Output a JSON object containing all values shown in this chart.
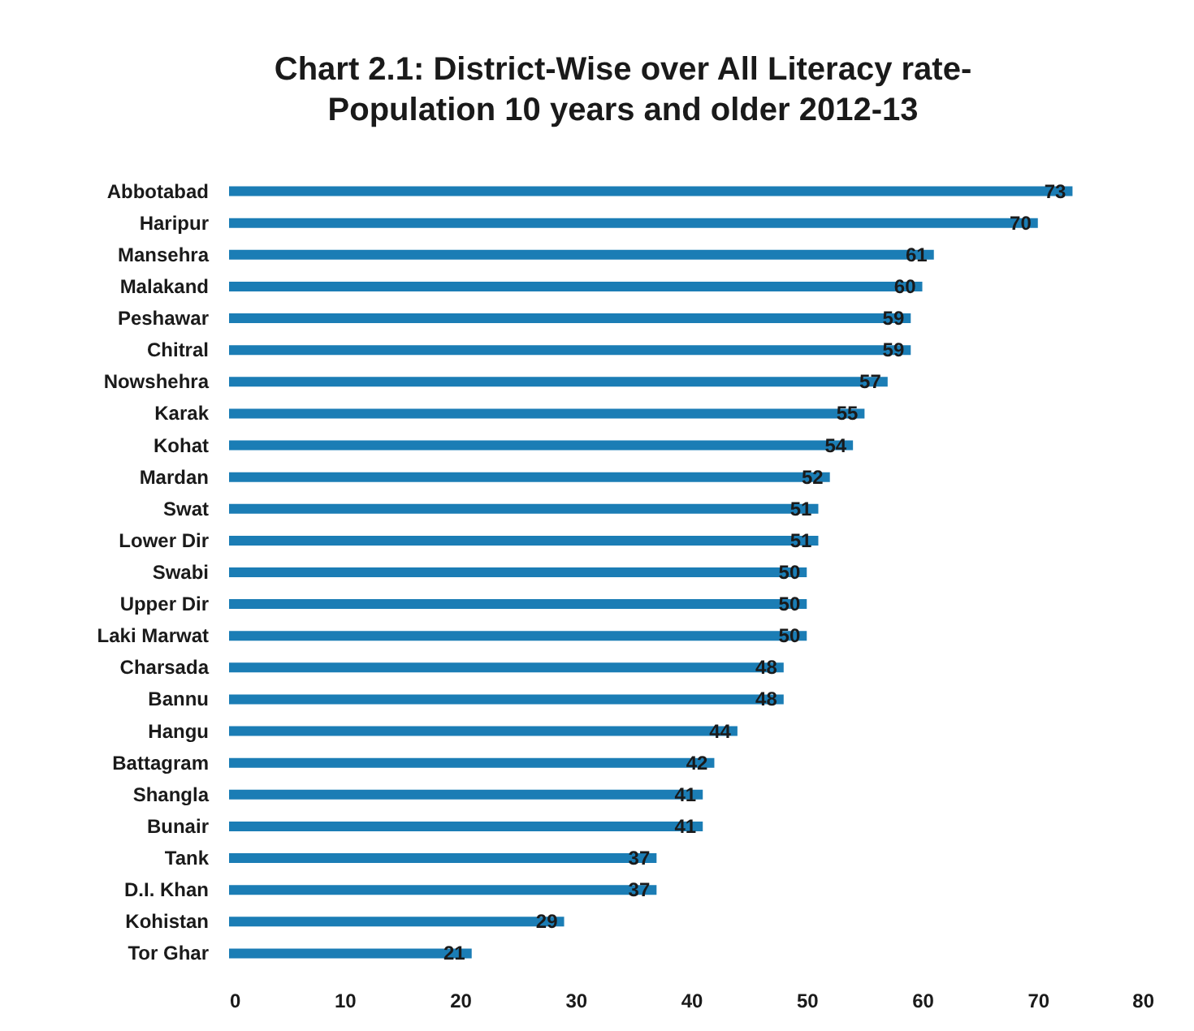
{
  "chart_data": {
    "type": "bar",
    "orientation": "horizontal",
    "title": "Chart 2.1: District-Wise over All Literacy rate-\nPopulation 10 years and older 2012-13",
    "categories": [
      "Abbotabad",
      "Haripur",
      "Mansehra",
      "Malakand",
      "Peshawar",
      "Chitral",
      "Nowshehra",
      "Karak",
      "Kohat",
      "Mardan",
      "Swat",
      "Lower Dir",
      "Swabi",
      "Upper Dir",
      "Laki Marwat",
      "Charsada",
      "Bannu",
      "Hangu",
      "Battagram",
      "Shangla",
      "Bunair",
      "Tank",
      "D.I. Khan",
      "Kohistan",
      "Tor Ghar"
    ],
    "values": [
      73,
      70,
      61,
      60,
      59,
      59,
      57,
      55,
      54,
      52,
      51,
      51,
      50,
      50,
      50,
      48,
      48,
      44,
      42,
      41,
      41,
      37,
      37,
      29,
      21
    ],
    "color": "#1b7db5",
    "xlim": [
      0,
      80
    ],
    "xticks": [
      0,
      10,
      20,
      30,
      40,
      50,
      60,
      70,
      80
    ],
    "data_labels": true
  }
}
